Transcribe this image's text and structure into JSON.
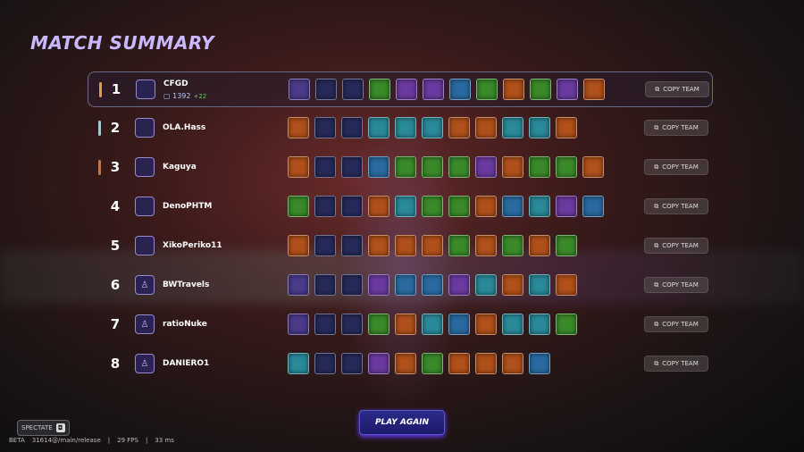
{
  "title": "MATCH SUMMARY",
  "copy_label": "COPY TEAM",
  "tile_colors": {
    "P": "#4a3a8a",
    "N": "#262a58",
    "G": "#3a8a2a",
    "B": "#2a6aa0",
    "T": "#2a8a9a",
    "O": "#b0501a",
    "V": "#6a3aa0"
  },
  "players": [
    {
      "rank": "1",
      "name": "CFGD",
      "mmr": "1392",
      "delta": "+22",
      "bar": "#d4a040",
      "highlight": true,
      "team": "PNNGVVBGOGVO"
    },
    {
      "rank": "2",
      "name": "OLA.Hass",
      "bar": "#a8c8d0",
      "team": "ONNTTTOOTTO"
    },
    {
      "rank": "3",
      "name": "Kaguya",
      "bar": "#c07850",
      "team": "ONNBGGGVOGGO"
    },
    {
      "rank": "4",
      "name": "DenoPHTM",
      "team": "GNNOTGGOBTVB"
    },
    {
      "rank": "5",
      "name": "XikoPeriko11",
      "team": "ONNOOOGOGOG"
    },
    {
      "rank": "6",
      "name": "BWTravels",
      "team": "PNNVBBVTOTO"
    },
    {
      "rank": "7",
      "name": "ratioNuke",
      "team": "PNNGOTBOTTG"
    },
    {
      "rank": "8",
      "name": "DANIERO1",
      "team": "TNNVOGOOOB"
    }
  ],
  "footer": {
    "spectate": "SPECTATE",
    "beta": "BETA",
    "build": "31614@/main/release",
    "fps": "29 FPS",
    "ping": "33 ms",
    "play_again": "PLAY AGAIN"
  }
}
